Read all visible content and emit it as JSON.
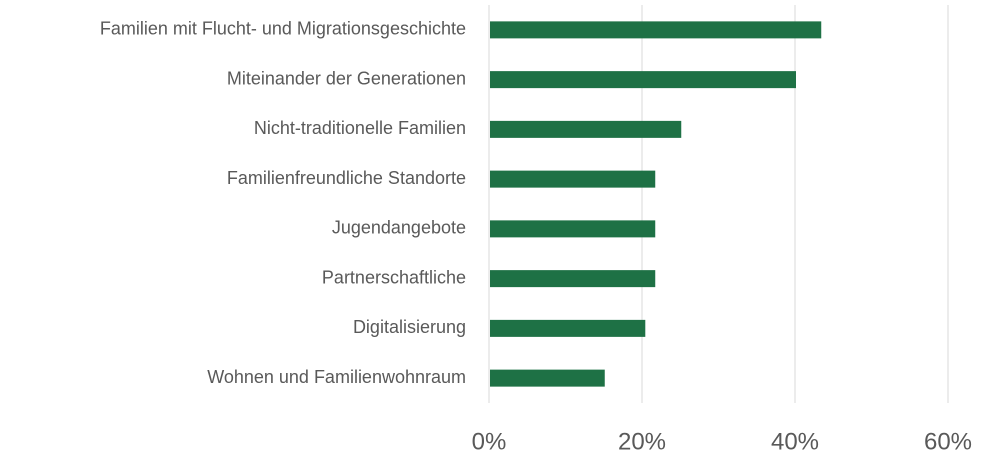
{
  "chart_data": {
    "type": "bar",
    "orientation": "horizontal",
    "categories": [
      "Familien mit Flucht- und Migrationsgeschichte",
      "Miteinander der Generationen",
      "Nicht-traditionelle Familien",
      "Familienfreundliche Standorte",
      "Jugendangebote",
      "Partnerschaftliche",
      "Digitalisierung",
      "Wohnen und Familienwohnraum"
    ],
    "values": [
      43.3,
      40,
      25,
      21.6,
      21.6,
      21.6,
      20.3,
      15
    ],
    "color": "#1e7145",
    "xlim": [
      0,
      60
    ],
    "xticks": [
      {
        "value": 0,
        "label": "0%"
      },
      {
        "value": 20,
        "label": "20%"
      },
      {
        "value": 40,
        "label": "40%"
      },
      {
        "value": 60,
        "label": "60%"
      }
    ],
    "grid": true
  }
}
